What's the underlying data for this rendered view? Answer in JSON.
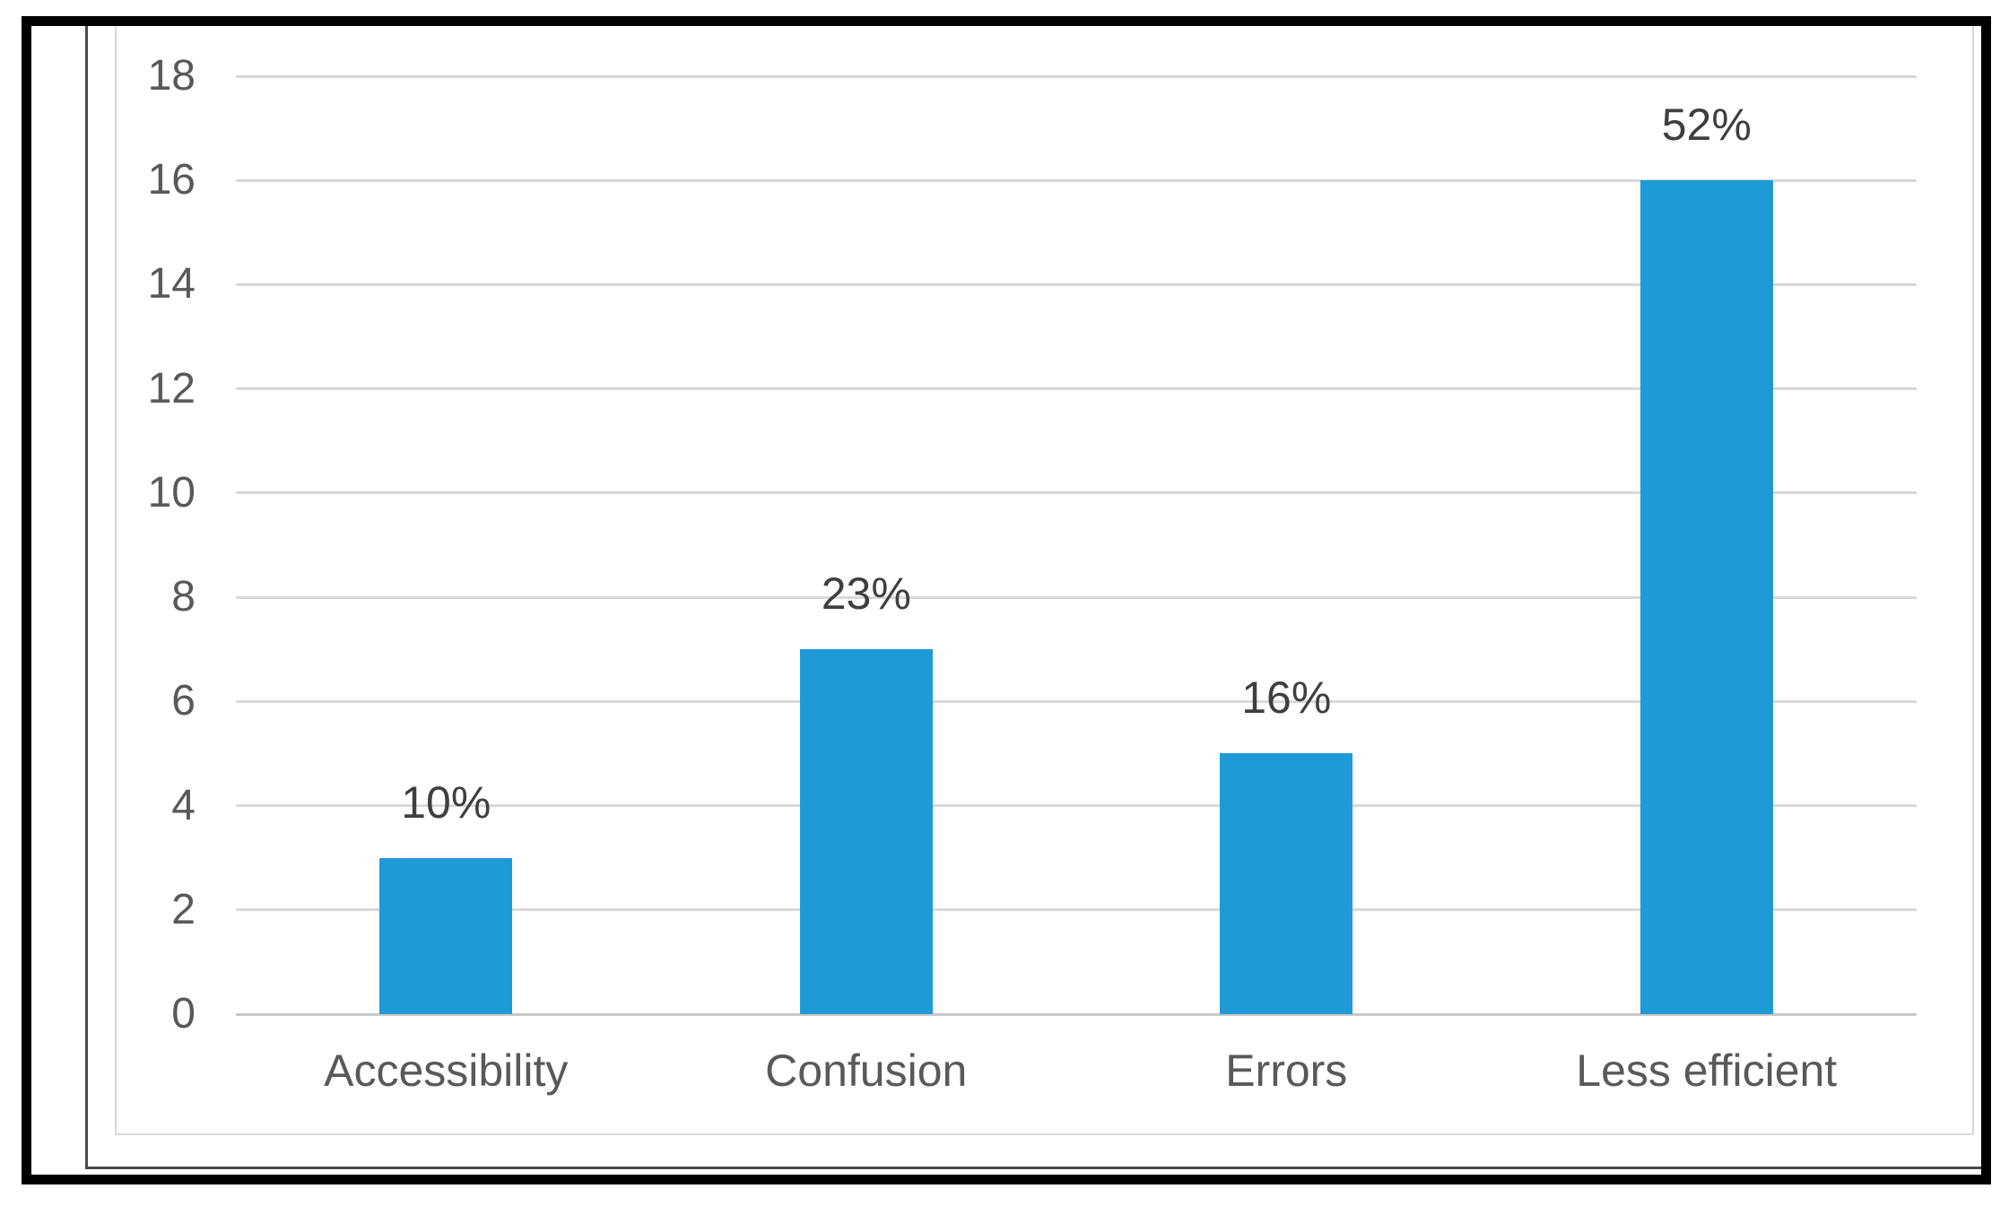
{
  "chart_data": {
    "type": "bar",
    "title": "",
    "xlabel": "",
    "ylabel": "",
    "categories": [
      "Accessibility",
      "Confusion",
      "Errors",
      "Less efficient"
    ],
    "values": [
      3,
      7,
      5,
      16
    ],
    "data_labels": [
      "10%",
      "23%",
      "16%",
      "52%"
    ],
    "ylim": [
      0,
      18
    ],
    "ytick_step": 2,
    "ytick_labels": [
      "0",
      "2",
      "4",
      "6",
      "8",
      "10",
      "12",
      "14",
      "16",
      "18"
    ],
    "grid": true,
    "legend_position": "none",
    "colors": {
      "bar": "#1e9bd7",
      "gridline": "#d9d9d9",
      "baseline": "#c9c9c9",
      "axis_text": "#595959",
      "category_text": "#595959",
      "data_label_text": "#3f3f3f",
      "outer_border": "#000000",
      "page_edge_line": "#4a4a4a",
      "chart_frame_border": "#d9d9d9",
      "background": "#ffffff"
    }
  }
}
